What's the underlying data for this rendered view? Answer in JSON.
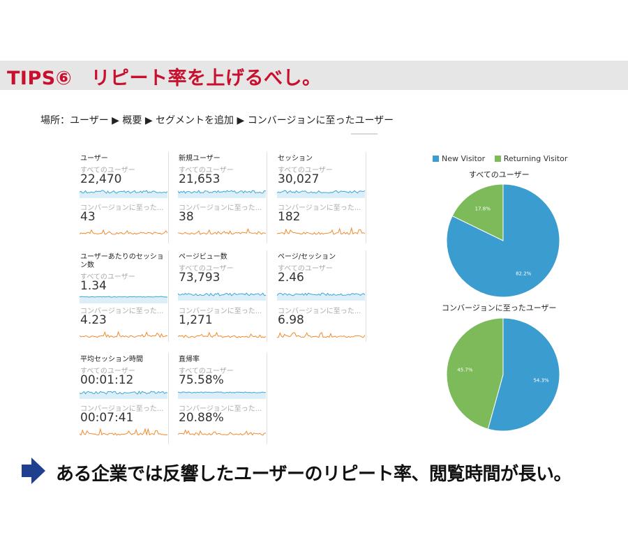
{
  "header": {
    "title": "TIPS⑥　リピート率を上げるべし。"
  },
  "breadcrumb": {
    "text": "場所：ユーザー ▶ 概要 ▶ セグメントを追加 ▶ コンバージョンに至ったユーザー"
  },
  "metrics": [
    {
      "title": "ユーザー",
      "seg1": "すべてのユーザー",
      "val1": "22,470",
      "seg2": "コンバージョンに至った...",
      "val2": "43"
    },
    {
      "title": "新規ユーザー",
      "seg1": "すべてのユーザー",
      "val1": "21,653",
      "seg2": "コンバージョンに至った...",
      "val2": "38"
    },
    {
      "title": "セッション",
      "seg1": "すべてのユーザー",
      "val1": "30,027",
      "seg2": "コンバージョンに至った...",
      "val2": "182"
    },
    {
      "title": "ユーザーあたりのセッション数",
      "seg1": "すべてのユーザー",
      "val1": "1.34",
      "seg2": "コンバージョンに至った...",
      "val2": "4.23"
    },
    {
      "title": "ページビュー数",
      "seg1": "すべてのユーザー",
      "val1": "73,793",
      "seg2": "コンバージョンに至った...",
      "val2": "1,271"
    },
    {
      "title": "ページ/セッション",
      "seg1": "すべてのユーザー",
      "val1": "2.46",
      "seg2": "コンバージョンに至った...",
      "val2": "6.98"
    },
    {
      "title": "平均セッション時間",
      "seg1": "すべてのユーザー",
      "val1": "00:01:12",
      "seg2": "コンバージョンに至った...",
      "val2": "00:07:41"
    },
    {
      "title": "直帰率",
      "seg1": "すべてのユーザー",
      "val1": "75.58%",
      "seg2": "コンバージョンに至った...",
      "val2": "20.88%"
    }
  ],
  "legend": [
    {
      "label": "New Visitor",
      "color": "#3a9ccf"
    },
    {
      "label": "Returning Visitor",
      "color": "#7cba5a"
    }
  ],
  "chart_data": [
    {
      "type": "pie",
      "title": "すべてのユーザー",
      "categories": [
        "New Visitor",
        "Returning Visitor"
      ],
      "values": [
        82.2,
        17.8
      ],
      "labels": [
        "82.2%",
        "17.8%"
      ]
    },
    {
      "type": "pie",
      "title": "コンバージョンに至ったユーザー",
      "categories": [
        "New Visitor",
        "Returning Visitor"
      ],
      "values": [
        54.3,
        45.7
      ],
      "labels": [
        "54.3%",
        "45.7%"
      ]
    }
  ],
  "conclusion": {
    "text": "ある企業では反響したユーザーのリピート率、閲覧時間が長い。"
  },
  "colors": {
    "blue": "#3a9ccf",
    "green": "#7cba5a",
    "sparkBlue": "#3aa6d8",
    "sparkOrange": "#f08a2c",
    "title": "#c8102e",
    "arrow": "#1f3f8f"
  }
}
